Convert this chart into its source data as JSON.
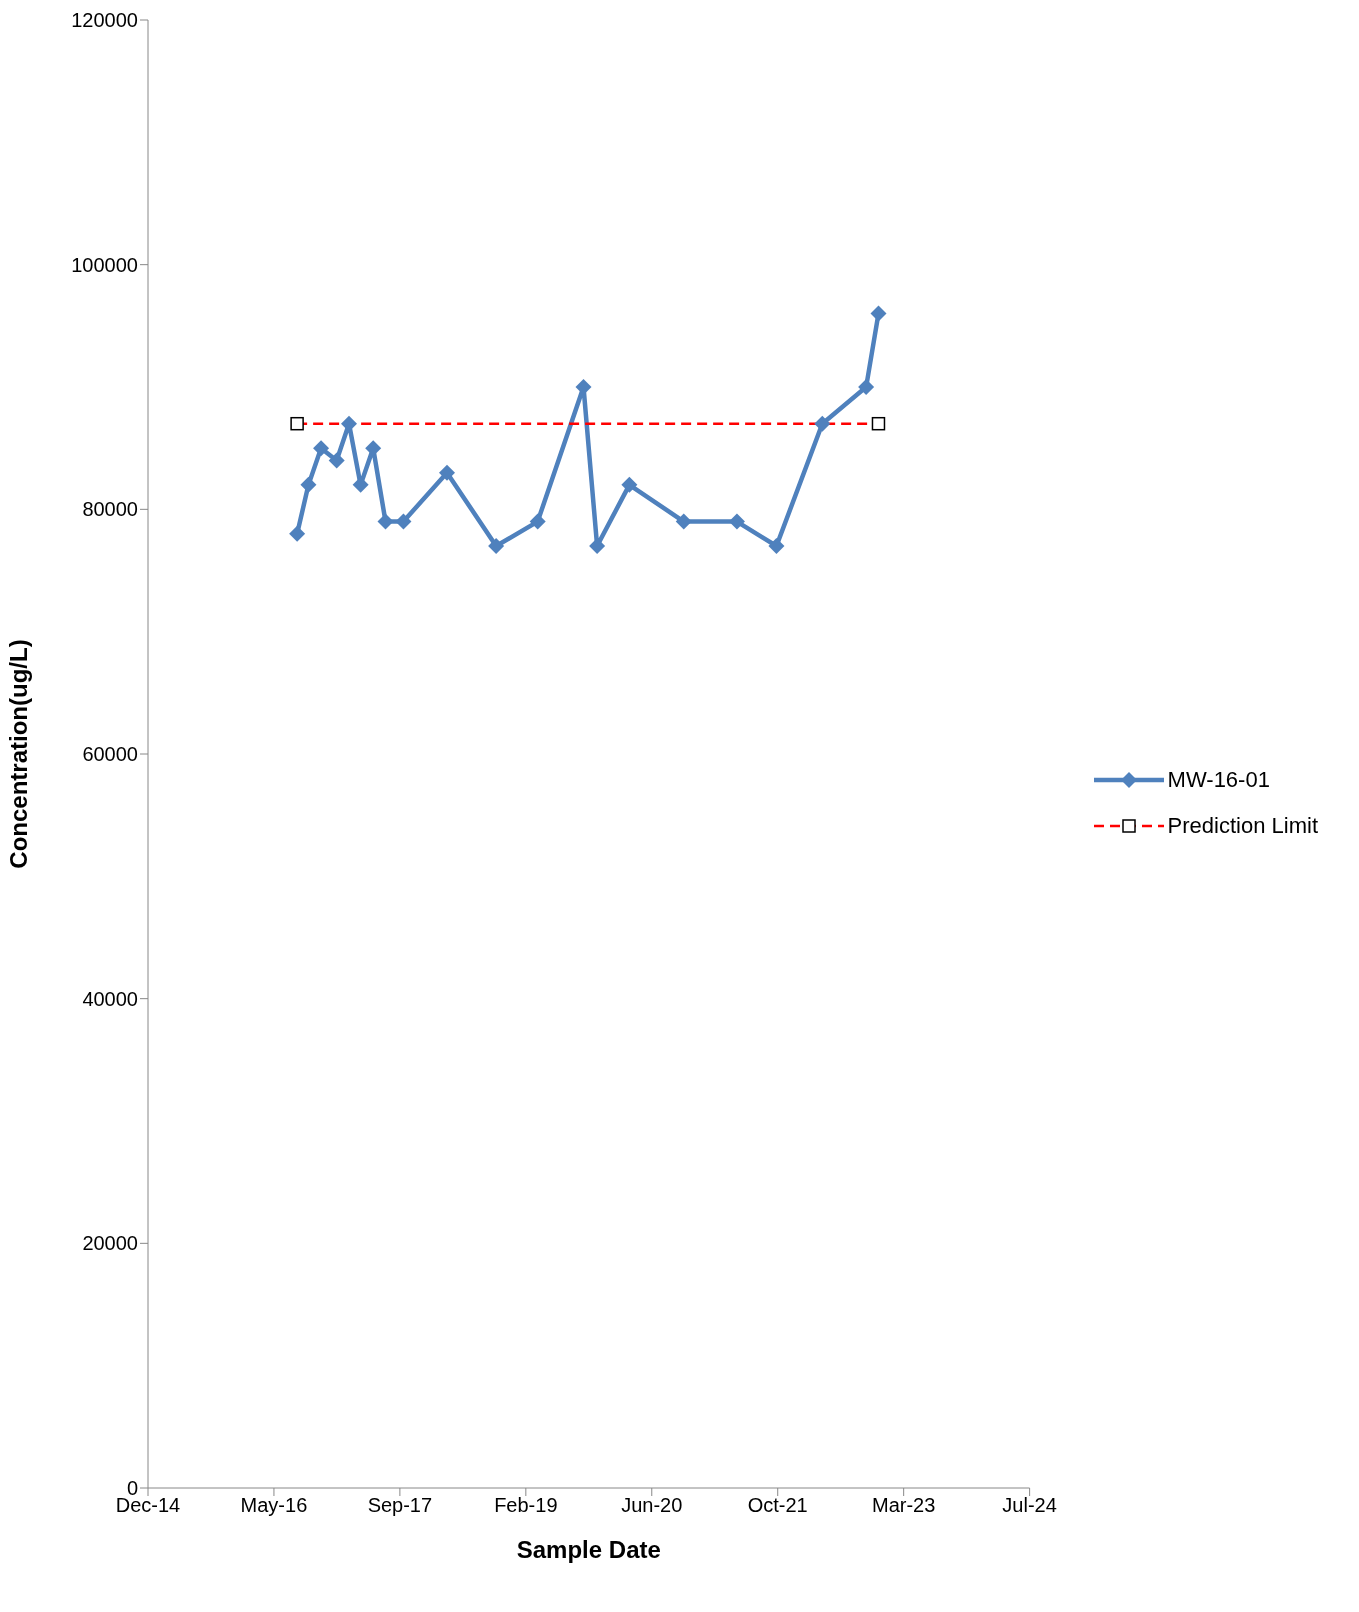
{
  "chart_data": {
    "type": "line",
    "xlabel": "Sample Date",
    "ylabel": "Concentration(ug/L)",
    "xlim": [
      "2014-12-27",
      "2024-07-27"
    ],
    "xticks": [
      {
        "value": "2014-12-27",
        "label": "Dec-14"
      },
      {
        "value": "2016-05-10",
        "label": "May-16"
      },
      {
        "value": "2017-09-22",
        "label": "Sep-17"
      },
      {
        "value": "2019-02-04",
        "label": "Feb-19"
      },
      {
        "value": "2020-06-18",
        "label": "Jun-20"
      },
      {
        "value": "2021-10-31",
        "label": "Oct-21"
      },
      {
        "value": "2023-03-15",
        "label": "Mar-23"
      },
      {
        "value": "2024-07-27",
        "label": "Jul-24"
      }
    ],
    "ylim": [
      0,
      120000
    ],
    "yticks": [
      0,
      20000,
      40000,
      60000,
      80000,
      100000,
      120000
    ],
    "legend": "right",
    "series": [
      {
        "name": "MW-16-01",
        "color": "#4f81bd",
        "marker": "diamond",
        "line_style": "solid",
        "x": [
          "2016-08-10",
          "2016-09-24",
          "2016-11-13",
          "2017-01-14",
          "2017-03-04",
          "2017-04-19",
          "2017-06-08",
          "2017-07-27",
          "2017-10-06",
          "2018-03-28",
          "2018-10-09",
          "2019-03-23",
          "2019-09-21",
          "2019-11-14",
          "2020-03-21",
          "2020-10-23",
          "2021-05-22",
          "2021-10-26",
          "2022-04-26",
          "2022-10-17",
          "2022-12-05"
        ],
        "values": [
          78000,
          82000,
          85000,
          84000,
          87000,
          82000,
          85000,
          79000,
          79000,
          83000,
          77000,
          79000,
          90000,
          77000,
          82000,
          79000,
          79000,
          77000,
          87000,
          90000,
          96000
        ]
      },
      {
        "name": "Prediction Limit",
        "color": "#ff0000",
        "marker": "square",
        "line_style": "dashed",
        "x": [
          "2016-08-10",
          "2022-12-05"
        ],
        "values": [
          87000,
          87000
        ]
      }
    ]
  }
}
